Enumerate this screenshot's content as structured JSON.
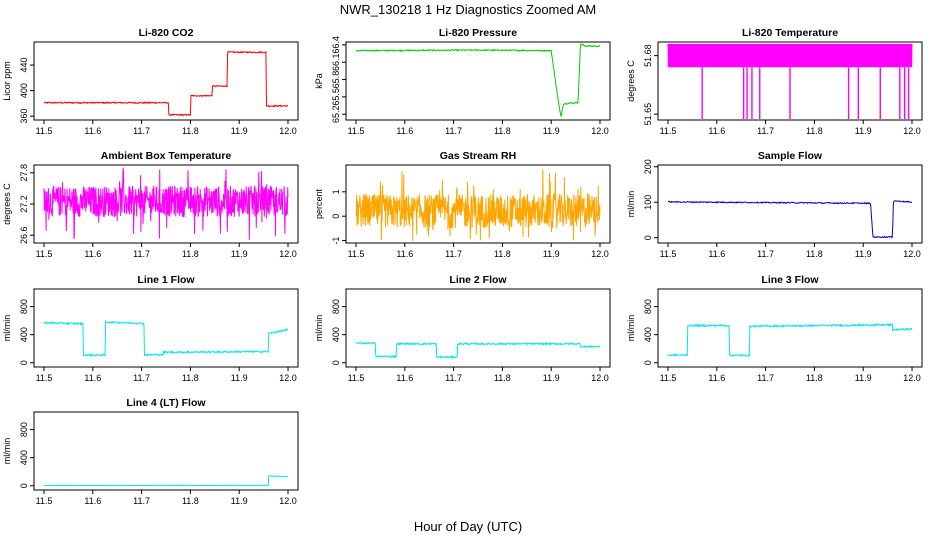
{
  "figure": {
    "title": "NWR_130218  1 Hz Diagnostics Zoomed AM",
    "xlabel": "Hour of Day (UTC)"
  },
  "chart_data": [
    {
      "type": "line",
      "title": "Li-820 CO2",
      "ylabel": "Licor ppm",
      "color": "#ff0000",
      "xlim": [
        11.5,
        12.0
      ],
      "ylim": [
        354,
        476
      ],
      "xticks": [
        "11.5",
        "11.6",
        "11.7",
        "11.8",
        "11.9",
        "12.0"
      ],
      "yticks": [
        360,
        400,
        440
      ],
      "noise": 1,
      "series": [
        {
          "x": [
            11.5,
            11.755,
            11.755,
            11.8,
            11.8,
            11.845,
            11.845,
            11.875,
            11.875,
            11.955,
            11.955,
            12.0
          ],
          "values": [
            381,
            381,
            362,
            362,
            392,
            392,
            407,
            407,
            460,
            460,
            376,
            376
          ]
        }
      ]
    },
    {
      "type": "line",
      "title": "Li-820 Pressure",
      "ylabel": "kPa",
      "color": "#00cc00",
      "xlim": [
        11.5,
        12.0
      ],
      "ylim": [
        65.1,
        66.45
      ],
      "xticks": [
        "11.5",
        "11.6",
        "11.7",
        "11.8",
        "11.9",
        "12.0"
      ],
      "yticks": [
        "65.2",
        "65.5",
        "65.8",
        "66.1",
        "66.4"
      ],
      "noise": 0.01,
      "series": [
        {
          "x": [
            11.5,
            11.75,
            11.9,
            11.915,
            11.92,
            11.925,
            11.95,
            11.955,
            11.96,
            11.97,
            12.0
          ],
          "values": [
            66.3,
            66.31,
            66.3,
            65.4,
            65.15,
            65.38,
            65.4,
            65.4,
            66.42,
            66.38,
            66.38
          ]
        }
      ]
    },
    {
      "type": "line",
      "title": "Li-820 Temperature",
      "ylabel": "degrees C",
      "color": "#ff00ff",
      "xlim": [
        11.5,
        12.0
      ],
      "ylim": [
        51.647,
        51.687
      ],
      "xticks": [
        "11.5",
        "11.6",
        "11.7",
        "11.8",
        "11.9",
        "12.0"
      ],
      "yticks": [
        "51.65",
        "51.68"
      ],
      "band": {
        "low": 51.674,
        "high": 51.686
      },
      "dips": [
        11.57,
        11.655,
        11.662,
        11.672,
        11.688,
        11.75,
        11.87,
        11.89,
        11.935,
        11.975,
        11.985,
        11.993
      ]
    },
    {
      "type": "line",
      "title": "Ambient Box Temperature",
      "ylabel": "degrees C",
      "color": "#ff00ff",
      "xlim": [
        11.5,
        12.0
      ],
      "ylim": [
        26.45,
        27.95
      ],
      "xticks": [
        "11.5",
        "11.6",
        "11.7",
        "11.8",
        "11.9",
        "12.0"
      ],
      "yticks": [
        "26.6",
        "27.2",
        "27.8"
      ],
      "band": {
        "low": 26.95,
        "high": 27.55
      }
    },
    {
      "type": "line",
      "title": "Gas Stream RH",
      "ylabel": "percent",
      "color": "#ffa500",
      "xlim": [
        11.5,
        12.0
      ],
      "ylim": [
        -1.1,
        2.1
      ],
      "xticks": [
        "11.5",
        "11.6",
        "11.7",
        "11.8",
        "11.9",
        "12.0"
      ],
      "yticks": [
        -1,
        0,
        1
      ],
      "band": {
        "low": -0.5,
        "high": 0.9
      }
    },
    {
      "type": "line",
      "title": "Sample Flow",
      "ylabel": "ml/min",
      "color": "#0000cd",
      "xlim": [
        11.5,
        12.0
      ],
      "ylim": [
        -15,
        205
      ],
      "xticks": [
        "11.5",
        "11.6",
        "11.7",
        "11.8",
        "11.9",
        "12.0"
      ],
      "yticks": [
        0,
        100,
        200
      ],
      "noise": 1.5,
      "series": [
        {
          "x": [
            11.5,
            11.915,
            11.92,
            11.96,
            11.962,
            12.0
          ],
          "values": [
            101,
            97,
            2,
            2,
            104,
            100
          ]
        }
      ]
    },
    {
      "type": "line",
      "title": "Line 1 Flow",
      "ylabel": "ml/min",
      "color": "#00e5ee",
      "xlim": [
        11.5,
        12.0
      ],
      "ylim": [
        -60,
        1050
      ],
      "xticks": [
        "11.5",
        "11.6",
        "11.7",
        "11.8",
        "11.9",
        "12.0"
      ],
      "yticks": [
        0,
        400,
        800
      ],
      "noise": 12,
      "series": [
        {
          "x": [
            11.5,
            11.58,
            11.58,
            11.625,
            11.625,
            11.705,
            11.705,
            11.745,
            11.745,
            11.96,
            11.96,
            12.0
          ],
          "values": [
            570,
            555,
            110,
            110,
            580,
            560,
            115,
            115,
            150,
            160,
            420,
            470
          ]
        }
      ]
    },
    {
      "type": "line",
      "title": "Line 2 Flow",
      "ylabel": "ml/min",
      "color": "#00e5ee",
      "xlim": [
        11.5,
        12.0
      ],
      "ylim": [
        -60,
        1050
      ],
      "xticks": [
        "11.5",
        "11.6",
        "11.7",
        "11.8",
        "11.9",
        "12.0"
      ],
      "yticks": [
        0,
        400,
        800
      ],
      "noise": 12,
      "series": [
        {
          "x": [
            11.5,
            11.54,
            11.54,
            11.583,
            11.583,
            11.665,
            11.665,
            11.708,
            11.708,
            11.96,
            11.96,
            12.0
          ],
          "values": [
            280,
            280,
            90,
            90,
            270,
            270,
            80,
            80,
            270,
            270,
            230,
            230
          ]
        }
      ]
    },
    {
      "type": "line",
      "title": "Line 3 Flow",
      "ylabel": "ml/min",
      "color": "#00e5ee",
      "xlim": [
        11.5,
        12.0
      ],
      "ylim": [
        -60,
        1050
      ],
      "xticks": [
        "11.5",
        "11.6",
        "11.7",
        "11.8",
        "11.9",
        "12.0"
      ],
      "yticks": [
        0,
        400,
        800
      ],
      "noise": 12,
      "series": [
        {
          "x": [
            11.5,
            11.54,
            11.54,
            11.625,
            11.625,
            11.667,
            11.667,
            11.96,
            11.96,
            12.0
          ],
          "values": [
            110,
            110,
            530,
            530,
            105,
            105,
            520,
            540,
            470,
            480
          ]
        }
      ]
    },
    {
      "type": "line",
      "title": "Line 4 (LT) Flow",
      "ylabel": "ml/min",
      "color": "#00e5ee",
      "xlim": [
        11.5,
        12.0
      ],
      "ylim": [
        -60,
        1050
      ],
      "xticks": [
        "11.5",
        "11.6",
        "11.7",
        "11.8",
        "11.9",
        "12.0"
      ],
      "yticks": [
        0,
        400,
        800
      ],
      "noise": 3,
      "series": [
        {
          "x": [
            11.5,
            11.96,
            11.96,
            12.0
          ],
          "values": [
            5,
            5,
            140,
            130
          ]
        }
      ]
    }
  ]
}
